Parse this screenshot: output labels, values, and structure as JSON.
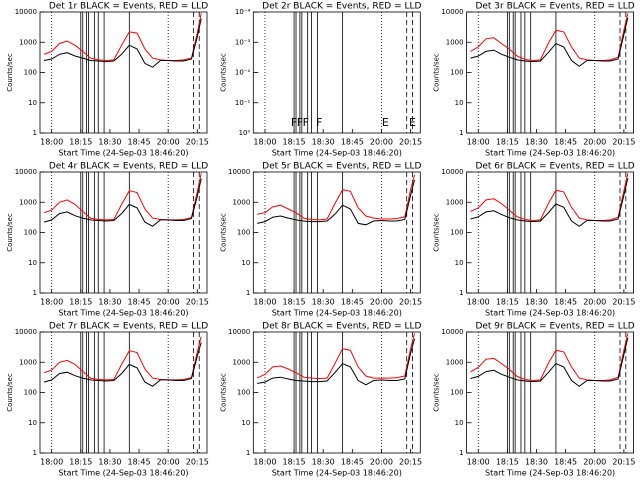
{
  "time_markers": {
    "solid": [
      15,
      16,
      18,
      19,
      22,
      24,
      27,
      40
    ],
    "dotted": [
      0,
      60
    ],
    "dashed": [
      73,
      76
    ]
  },
  "chart_data": [
    {
      "type": "line",
      "title": "Det 1r BLACK = Events, RED = LLD",
      "ylabel": "Counts/sec",
      "xlabel": "Start Time (24-Sep-03 18:46:20)",
      "log_y": true,
      "x": [
        -4,
        0,
        4,
        8,
        12,
        16,
        20,
        24,
        28,
        32,
        36,
        40,
        44,
        48,
        52,
        56,
        60,
        64,
        68,
        72,
        75,
        77
      ],
      "xlim": [
        -6,
        80
      ],
      "xticks": [
        {
          "value": 0,
          "label": "18:00"
        },
        {
          "value": 15,
          "label": "18:15"
        },
        {
          "value": 30,
          "label": "18:30"
        },
        {
          "value": 45,
          "label": "18:45"
        },
        {
          "value": 60,
          "label": "20:00"
        },
        {
          "value": 75,
          "label": "20:15"
        }
      ],
      "ylim": [
        1,
        10000
      ],
      "yticks": [
        1,
        10,
        100,
        1000,
        10000
      ],
      "series": [
        {
          "name": "LLD",
          "color": "#ff0000",
          "values": [
            400,
            500,
            900,
            1100,
            800,
            500,
            300,
            260,
            250,
            260,
            800,
            2200,
            2000,
            600,
            300,
            260,
            250,
            250,
            260,
            300,
            2000,
            9000
          ]
        },
        {
          "name": "Events",
          "color": "#000000",
          "values": [
            250,
            280,
            400,
            450,
            350,
            300,
            250,
            240,
            230,
            240,
            400,
            800,
            600,
            200,
            150,
            250,
            250,
            240,
            240,
            280,
            1500,
            6000
          ]
        }
      ]
    },
    {
      "type": "line",
      "title": "Det 2r BLACK = Events, RED = LLD",
      "ylabel": "Counts/sec",
      "xlabel": "Start Time (24-Sep-03 18:46:20)",
      "log_y": true,
      "x": [],
      "xlim": [
        -6,
        80
      ],
      "xticks": [
        {
          "value": 0,
          "label": "18:00"
        },
        {
          "value": 15,
          "label": "18:15"
        },
        {
          "value": 30,
          "label": "18:30"
        },
        {
          "value": 45,
          "label": "18:45"
        },
        {
          "value": 60,
          "label": "20:00"
        },
        {
          "value": 75,
          "label": "20:15"
        }
      ],
      "ylim": [
        1,
        0.0001
      ],
      "yticks": [
        {
          "value": 1,
          "label": "10⁰"
        },
        {
          "value": 0.1,
          "label": "10⁻¹"
        },
        {
          "value": 0.01,
          "label": "10⁻²"
        },
        {
          "value": 0.001,
          "label": "10⁻³"
        },
        {
          "value": 0.0001,
          "label": "10⁻⁴"
        }
      ],
      "series": [],
      "annotations": [
        {
          "text": "F",
          "x": 15
        },
        {
          "text": "F",
          "x": 18
        },
        {
          "text": "F",
          "x": 21
        },
        {
          "text": "F",
          "x": 28
        },
        {
          "text": "E",
          "x": 62
        },
        {
          "text": "E",
          "x": 76
        }
      ]
    },
    {
      "type": "line",
      "title": "Det 3r BLACK = Events, RED = LLD",
      "ylabel": "Counts/sec",
      "xlabel": "Start Time (24-Sep-03 18:46:20)",
      "log_y": true,
      "x": [
        -4,
        0,
        4,
        8,
        12,
        16,
        20,
        24,
        28,
        32,
        36,
        40,
        44,
        48,
        52,
        56,
        60,
        64,
        68,
        72,
        75,
        77
      ],
      "xlim": [
        -6,
        80
      ],
      "xticks": [
        {
          "value": 0,
          "label": "18:00"
        },
        {
          "value": 15,
          "label": "18:15"
        },
        {
          "value": 30,
          "label": "18:30"
        },
        {
          "value": 45,
          "label": "18:45"
        },
        {
          "value": 60,
          "label": "20:00"
        },
        {
          "value": 75,
          "label": "20:15"
        }
      ],
      "ylim": [
        1,
        10000
      ],
      "yticks": [
        1,
        10,
        100,
        1000,
        10000
      ],
      "series": [
        {
          "name": "LLD",
          "color": "#ff0000",
          "values": [
            500,
            700,
            1300,
            1400,
            900,
            600,
            350,
            270,
            250,
            260,
            900,
            2500,
            2200,
            700,
            300,
            260,
            250,
            250,
            260,
            320,
            2500,
            9000
          ]
        },
        {
          "name": "Events",
          "color": "#000000",
          "values": [
            300,
            350,
            500,
            550,
            400,
            320,
            260,
            240,
            230,
            240,
            450,
            900,
            700,
            250,
            160,
            250,
            250,
            240,
            240,
            280,
            1800,
            6500
          ]
        }
      ]
    },
    {
      "type": "line",
      "title": "Det 4r BLACK = Events, RED = LLD",
      "ylabel": "Counts/sec",
      "xlabel": "Start Time (24-Sep-03 18:46:20)",
      "log_y": true,
      "x": [
        -4,
        0,
        4,
        8,
        12,
        16,
        20,
        24,
        28,
        32,
        36,
        40,
        44,
        48,
        52,
        56,
        60,
        64,
        68,
        72,
        75,
        77
      ],
      "xlim": [
        -6,
        80
      ],
      "xticks": [
        {
          "value": 0,
          "label": "18:00"
        },
        {
          "value": 15,
          "label": "18:15"
        },
        {
          "value": 30,
          "label": "18:30"
        },
        {
          "value": 45,
          "label": "18:45"
        },
        {
          "value": 60,
          "label": "20:00"
        },
        {
          "value": 75,
          "label": "20:15"
        }
      ],
      "ylim": [
        1,
        10000
      ],
      "yticks": [
        1,
        10,
        100,
        1000,
        10000
      ],
      "series": [
        {
          "name": "LLD",
          "color": "#ff0000",
          "values": [
            450,
            550,
            1000,
            1200,
            850,
            500,
            300,
            270,
            260,
            270,
            850,
            2400,
            2100,
            600,
            300,
            270,
            260,
            260,
            270,
            310,
            2200,
            9000
          ]
        },
        {
          "name": "Events",
          "color": "#000000",
          "values": [
            220,
            260,
            420,
            480,
            360,
            300,
            260,
            250,
            240,
            250,
            420,
            850,
            650,
            220,
            160,
            260,
            260,
            250,
            250,
            290,
            1600,
            6000
          ]
        }
      ]
    },
    {
      "type": "line",
      "title": "Det 5r BLACK = Events, RED = LLD",
      "ylabel": "Counts/sec",
      "xlabel": "Start Time (24-Sep-03 18:46:20)",
      "log_y": true,
      "x": [
        -4,
        0,
        4,
        8,
        12,
        16,
        20,
        24,
        28,
        32,
        36,
        40,
        44,
        48,
        52,
        56,
        60,
        64,
        68,
        72,
        75,
        77
      ],
      "xlim": [
        -6,
        80
      ],
      "xticks": [
        {
          "value": 0,
          "label": "18:00"
        },
        {
          "value": 15,
          "label": "18:15"
        },
        {
          "value": 30,
          "label": "18:30"
        },
        {
          "value": 45,
          "label": "18:45"
        },
        {
          "value": 60,
          "label": "20:00"
        },
        {
          "value": 75,
          "label": "20:15"
        }
      ],
      "ylim": [
        1,
        10000
      ],
      "yticks": [
        1,
        10,
        100,
        1000,
        10000
      ],
      "series": [
        {
          "name": "LLD",
          "color": "#ff0000",
          "values": [
            400,
            450,
            700,
            800,
            600,
            450,
            300,
            270,
            260,
            280,
            900,
            2600,
            2300,
            650,
            350,
            300,
            280,
            280,
            290,
            330,
            2600,
            8000
          ]
        },
        {
          "name": "Events",
          "color": "#000000",
          "values": [
            200,
            230,
            320,
            350,
            300,
            260,
            240,
            230,
            230,
            240,
            400,
            800,
            600,
            200,
            180,
            240,
            250,
            240,
            240,
            270,
            1700,
            5500
          ]
        }
      ]
    },
    {
      "type": "line",
      "title": "Det 6r BLACK = Events, RED = LLD",
      "ylabel": "Counts/sec",
      "xlabel": "Start Time (24-Sep-03 18:46:20)",
      "log_y": true,
      "x": [
        -4,
        0,
        4,
        8,
        12,
        16,
        20,
        24,
        28,
        32,
        36,
        40,
        44,
        48,
        52,
        56,
        60,
        64,
        68,
        72,
        75,
        77
      ],
      "xlim": [
        -6,
        80
      ],
      "xticks": [
        {
          "value": 0,
          "label": "18:00"
        },
        {
          "value": 15,
          "label": "18:15"
        },
        {
          "value": 30,
          "label": "18:30"
        },
        {
          "value": 45,
          "label": "18:45"
        },
        {
          "value": 60,
          "label": "20:00"
        },
        {
          "value": 75,
          "label": "20:15"
        }
      ],
      "ylim": [
        1,
        10000
      ],
      "yticks": [
        1,
        10,
        100,
        1000,
        10000
      ],
      "series": [
        {
          "name": "LLD",
          "color": "#ff0000",
          "values": [
            500,
            650,
            1200,
            1300,
            900,
            550,
            330,
            270,
            250,
            260,
            880,
            2500,
            2200,
            680,
            300,
            260,
            250,
            250,
            260,
            320,
            2400,
            9000
          ]
        },
        {
          "name": "Events",
          "color": "#000000",
          "values": [
            280,
            330,
            480,
            520,
            390,
            310,
            260,
            240,
            230,
            240,
            440,
            880,
            680,
            240,
            160,
            250,
            250,
            240,
            240,
            280,
            1700,
            6300
          ]
        }
      ]
    },
    {
      "type": "line",
      "title": "Det 7r BLACK = Events, RED = LLD",
      "ylabel": "Counts/sec",
      "xlabel": "Start Time (24-Sep-03 18:46:20)",
      "log_y": true,
      "x": [
        -4,
        0,
        4,
        8,
        12,
        16,
        20,
        24,
        28,
        32,
        36,
        40,
        44,
        48,
        52,
        56,
        60,
        64,
        68,
        72,
        75,
        77
      ],
      "xlim": [
        -6,
        80
      ],
      "xticks": [
        {
          "value": 0,
          "label": "18:00"
        },
        {
          "value": 15,
          "label": "18:15"
        },
        {
          "value": 30,
          "label": "18:30"
        },
        {
          "value": 45,
          "label": "18:45"
        },
        {
          "value": 60,
          "label": "20:00"
        },
        {
          "value": 75,
          "label": "20:15"
        }
      ],
      "ylim": [
        1,
        10000
      ],
      "yticks": [
        1,
        10,
        100,
        1000,
        10000
      ],
      "series": [
        {
          "name": "LLD",
          "color": "#ff0000",
          "values": [
            450,
            550,
            1000,
            1150,
            850,
            500,
            300,
            270,
            260,
            270,
            850,
            2400,
            2100,
            600,
            300,
            270,
            260,
            260,
            270,
            310,
            2200,
            7000
          ]
        },
        {
          "name": "Events",
          "color": "#000000",
          "values": [
            220,
            260,
            420,
            470,
            360,
            300,
            260,
            250,
            240,
            250,
            420,
            850,
            650,
            220,
            160,
            260,
            260,
            250,
            250,
            290,
            1600,
            4500
          ]
        }
      ]
    },
    {
      "type": "line",
      "title": "Det 8r BLACK = Events, RED = LLD",
      "ylabel": "Counts/sec",
      "xlabel": "Start Time (24-Sep-03 18:46:20)",
      "log_y": true,
      "x": [
        -4,
        0,
        4,
        8,
        12,
        16,
        20,
        24,
        28,
        32,
        36,
        40,
        44,
        48,
        52,
        56,
        60,
        64,
        68,
        72,
        75,
        77
      ],
      "xlim": [
        -6,
        80
      ],
      "xticks": [
        {
          "value": 0,
          "label": "18:00"
        },
        {
          "value": 15,
          "label": "18:15"
        },
        {
          "value": 30,
          "label": "18:30"
        },
        {
          "value": 45,
          "label": "18:45"
        },
        {
          "value": 60,
          "label": "20:00"
        },
        {
          "value": 75,
          "label": "20:15"
        }
      ],
      "ylim": [
        1,
        10000
      ],
      "yticks": [
        1,
        10,
        100,
        1000,
        10000
      ],
      "series": [
        {
          "name": "LLD",
          "color": "#ff0000",
          "values": [
            300,
            400,
            700,
            750,
            600,
            450,
            320,
            300,
            290,
            300,
            900,
            2800,
            2500,
            700,
            350,
            300,
            300,
            300,
            310,
            350,
            2800,
            9000
          ]
        },
        {
          "name": "Events",
          "color": "#000000",
          "values": [
            200,
            220,
            300,
            320,
            280,
            250,
            240,
            230,
            230,
            240,
            450,
            900,
            700,
            250,
            180,
            250,
            260,
            250,
            250,
            280,
            2000,
            6000
          ]
        }
      ]
    },
    {
      "type": "line",
      "title": "Det 9r BLACK = Events, RED = LLD",
      "ylabel": "Counts/sec",
      "xlabel": "Start Time (24-Sep-03 18:46:20)",
      "log_y": true,
      "x": [
        -4,
        0,
        4,
        8,
        12,
        16,
        20,
        24,
        28,
        32,
        36,
        40,
        44,
        48,
        52,
        56,
        60,
        64,
        68,
        72,
        75,
        77
      ],
      "xlim": [
        -6,
        80
      ],
      "xticks": [
        {
          "value": 0,
          "label": "18:00"
        },
        {
          "value": 15,
          "label": "18:15"
        },
        {
          "value": 30,
          "label": "18:30"
        },
        {
          "value": 45,
          "label": "18:45"
        },
        {
          "value": 60,
          "label": "20:00"
        },
        {
          "value": 75,
          "label": "20:15"
        }
      ],
      "ylim": [
        1,
        10000
      ],
      "yticks": [
        1,
        10,
        100,
        1000,
        10000
      ],
      "series": [
        {
          "name": "LLD",
          "color": "#ff0000",
          "values": [
            480,
            680,
            1250,
            1350,
            900,
            580,
            340,
            270,
            250,
            260,
            900,
            2500,
            2200,
            700,
            300,
            260,
            250,
            250,
            260,
            320,
            2500,
            9000
          ]
        },
        {
          "name": "Events",
          "color": "#000000",
          "values": [
            290,
            340,
            490,
            540,
            400,
            320,
            260,
            240,
            230,
            240,
            450,
            900,
            700,
            250,
            160,
            250,
            250,
            240,
            240,
            280,
            1800,
            6400
          ]
        }
      ]
    }
  ]
}
